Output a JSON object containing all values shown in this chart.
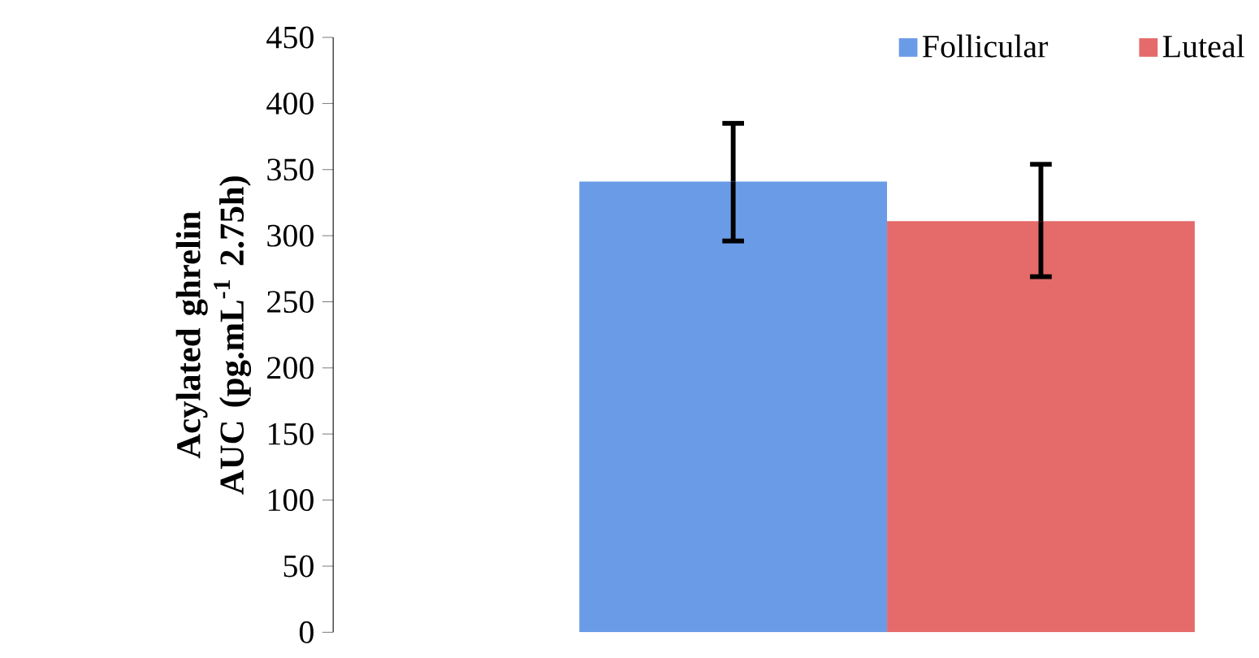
{
  "chart_data": {
    "type": "bar",
    "ylabel": "Acylated ghrelin AUC (pg.mL$^{-1}$ 2.75h)",
    "categories": [
      null
    ],
    "series": [
      {
        "name": "Follicular",
        "color": "#6a9be6",
        "values": [
          341
        ],
        "errors": [
          [
            296,
            385
          ]
        ]
      },
      {
        "name": "Luteal",
        "color": "#e56a6a",
        "values": [
          311
        ],
        "errors": [
          [
            269,
            354
          ]
        ]
      }
    ],
    "ylim": [
      0,
      450
    ],
    "yticks": [
      0,
      50,
      100,
      150,
      200,
      250,
      300,
      350,
      400,
      450
    ],
    "legend": "top right",
    "grid": false
  }
}
